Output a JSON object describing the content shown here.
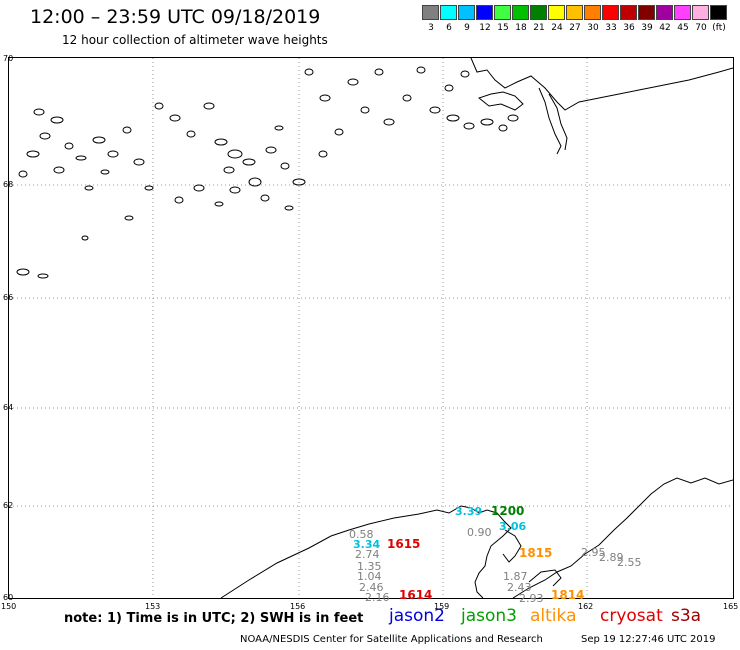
{
  "header": {
    "title": "12:00 – 23:59 UTC 09/18/2019",
    "subtitle": "12 hour collection of altimeter wave heights"
  },
  "scale": {
    "colors": [
      "#808080",
      "#00ffff",
      "#00c0ff",
      "#0000ff",
      "#40ff40",
      "#00c000",
      "#008000",
      "#ffff00",
      "#ffc000",
      "#ff8000",
      "#ff0000",
      "#c00000",
      "#800000",
      "#a000a0",
      "#ff40ff",
      "#ffb0e0",
      "#000000"
    ],
    "labels": [
      "3",
      "6",
      "9",
      "12",
      "15",
      "18",
      "21",
      "24",
      "27",
      "30",
      "33",
      "36",
      "39",
      "42",
      "45",
      "70",
      "(ft)"
    ]
  },
  "map": {
    "lat_ticks": [
      "70",
      "68",
      "66",
      "64",
      "62",
      "60"
    ],
    "lon_ticks": [
      "150",
      "153",
      "156",
      "159",
      "162",
      "165"
    ],
    "measurements": [
      {
        "text": "0.58",
        "color": "#808080"
      },
      {
        "text": "3.34",
        "color": "#00c0e0"
      },
      {
        "text": "2.74",
        "color": "#808080"
      },
      {
        "text": "1.35",
        "color": "#808080"
      },
      {
        "text": "1.04",
        "color": "#808080"
      },
      {
        "text": "2.46",
        "color": "#808080"
      },
      {
        "text": "2.16",
        "color": "#808080"
      },
      {
        "text": "3.39",
        "color": "#00c0e0"
      },
      {
        "text": "0.90",
        "color": "#808080"
      },
      {
        "text": "3.06",
        "color": "#00c0e0"
      },
      {
        "text": "1.87",
        "color": "#808080"
      },
      {
        "text": "2.43",
        "color": "#808080"
      },
      {
        "text": "2.93",
        "color": "#808080"
      },
      {
        "text": "2.95",
        "color": "#808080"
      },
      {
        "text": "2.89",
        "color": "#808080"
      },
      {
        "text": "2.55",
        "color": "#808080"
      }
    ],
    "time_labels": [
      {
        "text": "1615",
        "color": "#e00000"
      },
      {
        "text": "1614",
        "color": "#e00000"
      },
      {
        "text": "1200",
        "color": "#008000"
      },
      {
        "text": "1815",
        "color": "#ff9000"
      },
      {
        "text": "1814",
        "color": "#ff9000"
      }
    ]
  },
  "footer": {
    "note": "note: 1) Time is in UTC; 2) SWH is in feet",
    "satellites": [
      {
        "name": "jason2",
        "color": "#0000e0"
      },
      {
        "name": "jason3",
        "color": "#00a000"
      },
      {
        "name": "altika",
        "color": "#ff9000"
      },
      {
        "name": "cryosat",
        "color": "#e00000"
      },
      {
        "name": "s3a",
        "color": "#a00000"
      }
    ],
    "credit": "NOAA/NESDIS Center for Satellite Applications and Research",
    "timestamp": "Sep 19 12:27:46 UTC 2019"
  }
}
